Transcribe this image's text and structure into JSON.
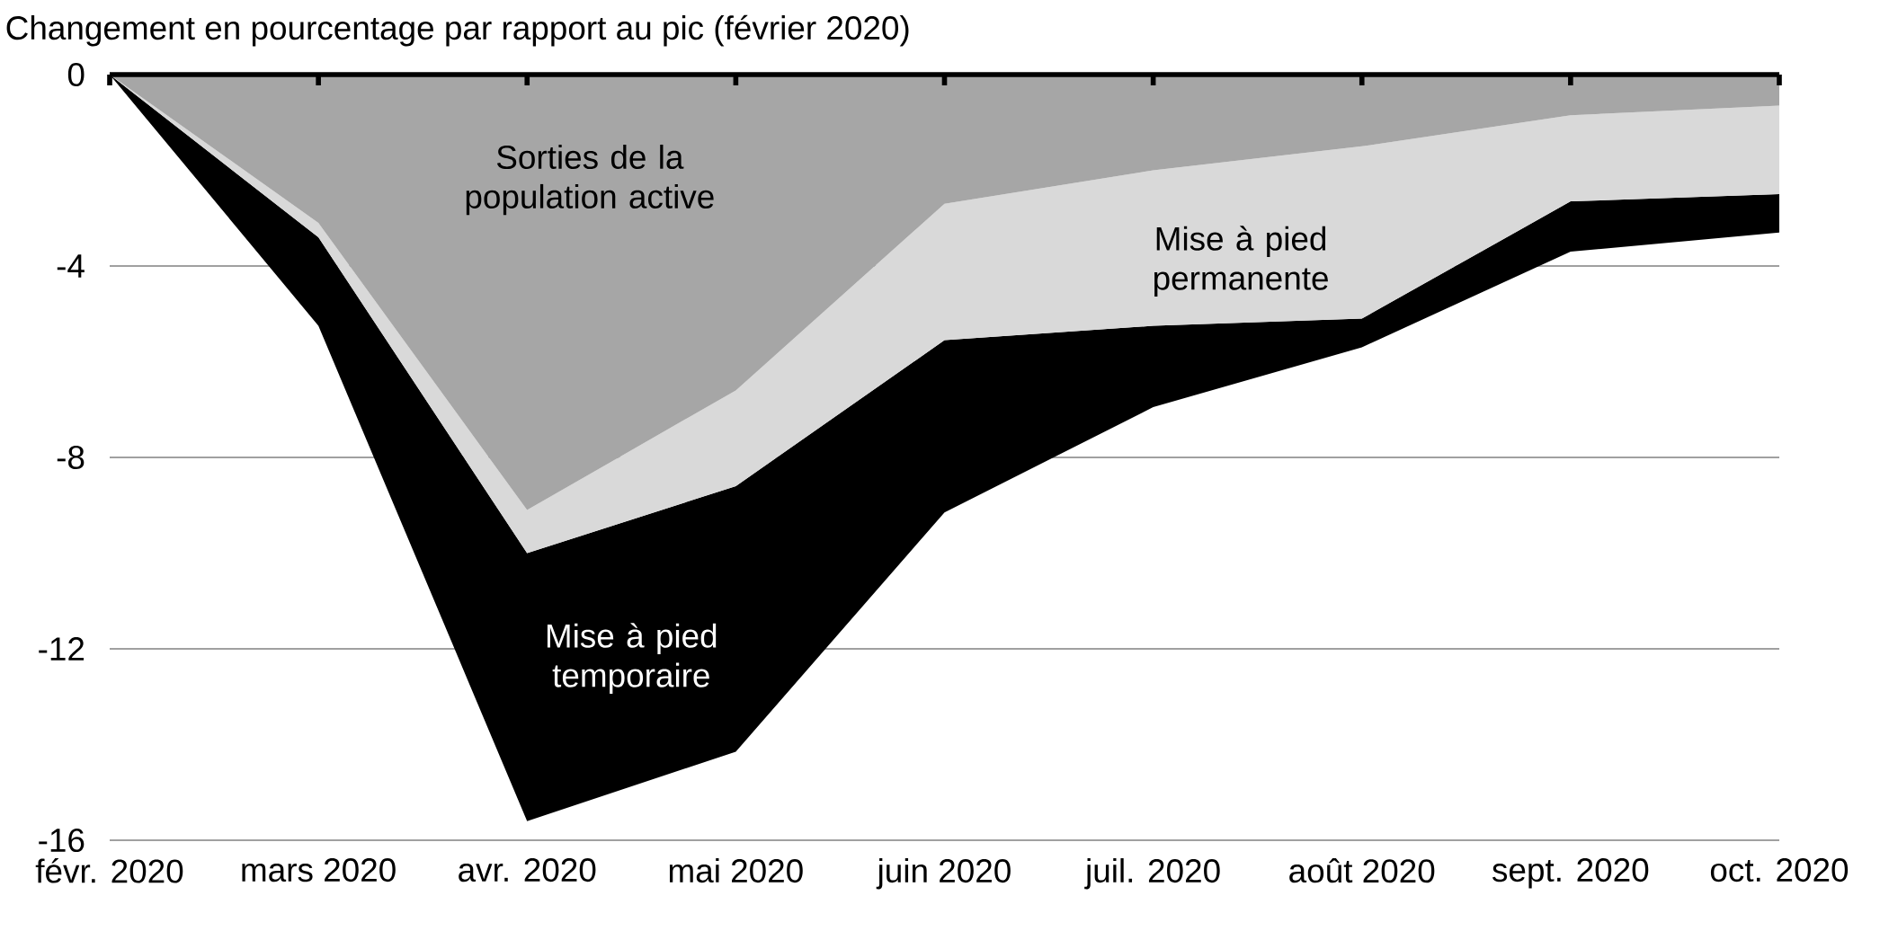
{
  "chart_data": {
    "type": "area",
    "stacked": true,
    "ylabel": "Changement en pourcentage par rapport au pic (février 2020)",
    "categories": [
      "févr. 2020",
      "mars 2020",
      "avr. 2020",
      "mai 2020",
      "juin 2020",
      "juil. 2020",
      "août 2020",
      "sept. 2020",
      "oct. 2020"
    ],
    "series": [
      {
        "name": "Sorties de la population active",
        "color": "#a6a6a6",
        "values": [
          0,
          -3.1,
          -9.1,
          -6.6,
          -2.7,
          -2.0,
          -1.5,
          -0.85,
          -0.65
        ]
      },
      {
        "name": "Mise à pied permanente",
        "color": "#d9d9d9",
        "values": [
          0,
          -0.3,
          -0.9,
          -2.0,
          -2.85,
          -3.25,
          -3.6,
          -1.8,
          -1.85
        ]
      },
      {
        "name": "Mise à pied temporaire",
        "color": "#000000",
        "values": [
          0,
          -1.85,
          -5.6,
          -5.55,
          -3.6,
          -1.7,
          -0.6,
          -1.05,
          -0.8
        ]
      }
    ],
    "ylim": [
      -16,
      0
    ],
    "yticks": [
      0,
      -4,
      -8,
      -12,
      -16
    ],
    "grid": "y"
  }
}
